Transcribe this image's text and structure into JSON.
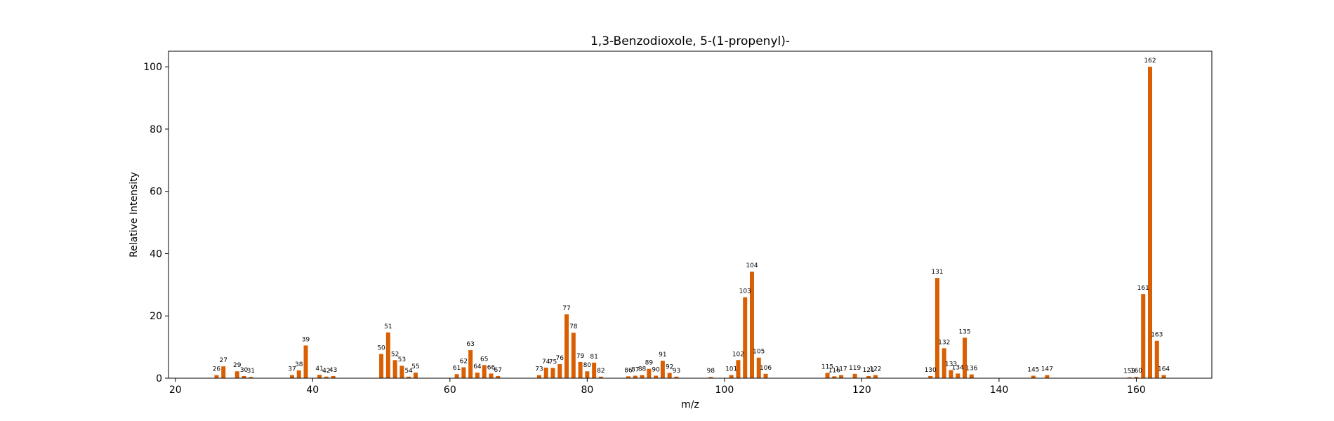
{
  "chart_data": {
    "type": "bar",
    "title": "1,3-Benzodioxole, 5-(1-propenyl)-",
    "xlabel": "m/z",
    "ylabel": "Relative Intensity",
    "xlim": [
      19,
      171
    ],
    "ylim": [
      0,
      105
    ],
    "xticks": [
      20,
      40,
      60,
      80,
      100,
      120,
      140,
      160
    ],
    "yticks": [
      0,
      20,
      40,
      60,
      80,
      100
    ],
    "bar_color": "#d95f02",
    "grid": false,
    "peaks": [
      {
        "mz": 26,
        "intensity": 1.0
      },
      {
        "mz": 27,
        "intensity": 3.8
      },
      {
        "mz": 29,
        "intensity": 2.2
      },
      {
        "mz": 30,
        "intensity": 0.7
      },
      {
        "mz": 31,
        "intensity": 0.4
      },
      {
        "mz": 37,
        "intensity": 1.0
      },
      {
        "mz": 38,
        "intensity": 2.5
      },
      {
        "mz": 39,
        "intensity": 10.5
      },
      {
        "mz": 41,
        "intensity": 1.1
      },
      {
        "mz": 42,
        "intensity": 0.5
      },
      {
        "mz": 43,
        "intensity": 0.7
      },
      {
        "mz": 50,
        "intensity": 7.8
      },
      {
        "mz": 51,
        "intensity": 14.7
      },
      {
        "mz": 52,
        "intensity": 5.8
      },
      {
        "mz": 53,
        "intensity": 4.0
      },
      {
        "mz": 54,
        "intensity": 0.5
      },
      {
        "mz": 55,
        "intensity": 1.8
      },
      {
        "mz": 61,
        "intensity": 1.3
      },
      {
        "mz": 62,
        "intensity": 3.5
      },
      {
        "mz": 63,
        "intensity": 9.0
      },
      {
        "mz": 64,
        "intensity": 1.8
      },
      {
        "mz": 65,
        "intensity": 4.2
      },
      {
        "mz": 66,
        "intensity": 1.5
      },
      {
        "mz": 67,
        "intensity": 0.7
      },
      {
        "mz": 73,
        "intensity": 1.0
      },
      {
        "mz": 74,
        "intensity": 3.4
      },
      {
        "mz": 75,
        "intensity": 3.3
      },
      {
        "mz": 76,
        "intensity": 4.5
      },
      {
        "mz": 77,
        "intensity": 20.5
      },
      {
        "mz": 78,
        "intensity": 14.6
      },
      {
        "mz": 79,
        "intensity": 5.2
      },
      {
        "mz": 80,
        "intensity": 2.2
      },
      {
        "mz": 81,
        "intensity": 5.0
      },
      {
        "mz": 82,
        "intensity": 0.5
      },
      {
        "mz": 86,
        "intensity": 0.6
      },
      {
        "mz": 87,
        "intensity": 0.8
      },
      {
        "mz": 88,
        "intensity": 1.0
      },
      {
        "mz": 89,
        "intensity": 3.0
      },
      {
        "mz": 90,
        "intensity": 0.8
      },
      {
        "mz": 91,
        "intensity": 5.6
      },
      {
        "mz": 92,
        "intensity": 1.7
      },
      {
        "mz": 93,
        "intensity": 0.5
      },
      {
        "mz": 98,
        "intensity": 0.4
      },
      {
        "mz": 101,
        "intensity": 1.0
      },
      {
        "mz": 102,
        "intensity": 5.8
      },
      {
        "mz": 103,
        "intensity": 26.0
      },
      {
        "mz": 104,
        "intensity": 34.2
      },
      {
        "mz": 105,
        "intensity": 6.6
      },
      {
        "mz": 106,
        "intensity": 1.4
      },
      {
        "mz": 115,
        "intensity": 1.7
      },
      {
        "mz": 116,
        "intensity": 0.6
      },
      {
        "mz": 117,
        "intensity": 1.0
      },
      {
        "mz": 119,
        "intensity": 1.4
      },
      {
        "mz": 121,
        "intensity": 0.7
      },
      {
        "mz": 122,
        "intensity": 1.0
      },
      {
        "mz": 130,
        "intensity": 0.7
      },
      {
        "mz": 131,
        "intensity": 32.2
      },
      {
        "mz": 132,
        "intensity": 9.6
      },
      {
        "mz": 133,
        "intensity": 2.6
      },
      {
        "mz": 134,
        "intensity": 1.5
      },
      {
        "mz": 135,
        "intensity": 13.0
      },
      {
        "mz": 136,
        "intensity": 1.2
      },
      {
        "mz": 145,
        "intensity": 0.8
      },
      {
        "mz": 147,
        "intensity": 1.0
      },
      {
        "mz": 159,
        "intensity": 0.3
      },
      {
        "mz": 160,
        "intensity": 0.4
      },
      {
        "mz": 161,
        "intensity": 27.0
      },
      {
        "mz": 162,
        "intensity": 100.0
      },
      {
        "mz": 163,
        "intensity": 12.0
      },
      {
        "mz": 164,
        "intensity": 1.0
      }
    ]
  }
}
